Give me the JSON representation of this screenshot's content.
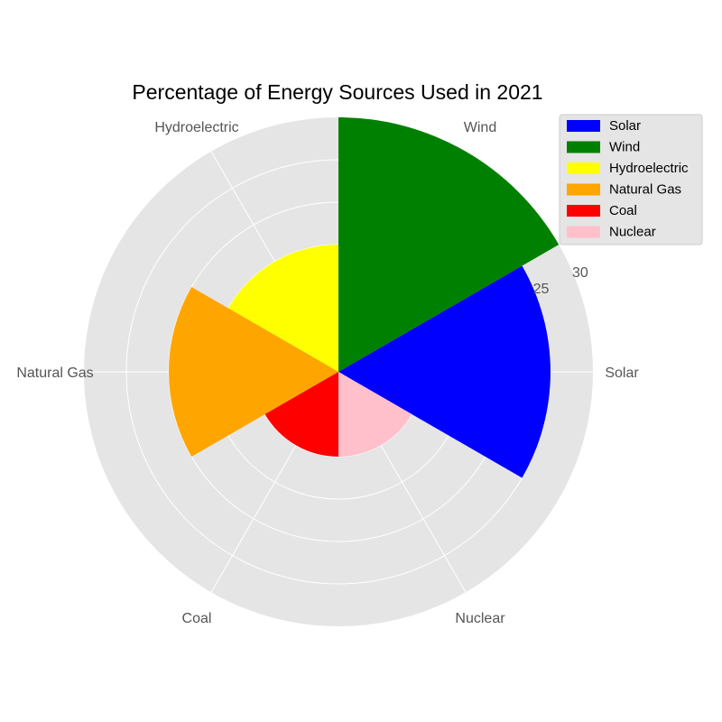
{
  "chart_data": {
    "type": "polar-bar",
    "title": "Percentage of Energy Sources Used in 2021",
    "categories": [
      "Solar",
      "Wind",
      "Hydroelectric",
      "Natural Gas",
      "Coal",
      "Nuclear"
    ],
    "values": [
      25,
      30,
      15,
      20,
      10,
      10
    ],
    "colors": [
      "#0000ff",
      "#008000",
      "#ffff00",
      "#ffa500",
      "#ff0000",
      "#ffc0cb"
    ],
    "rlim": [
      0,
      30
    ],
    "radial_ticks": [
      "25",
      "30"
    ],
    "grid": true,
    "legend_position": "top-right",
    "legend": [
      "Solar",
      "Wind",
      "Hydroelectric",
      "Natural Gas",
      "Coal",
      "Nuclear"
    ]
  }
}
